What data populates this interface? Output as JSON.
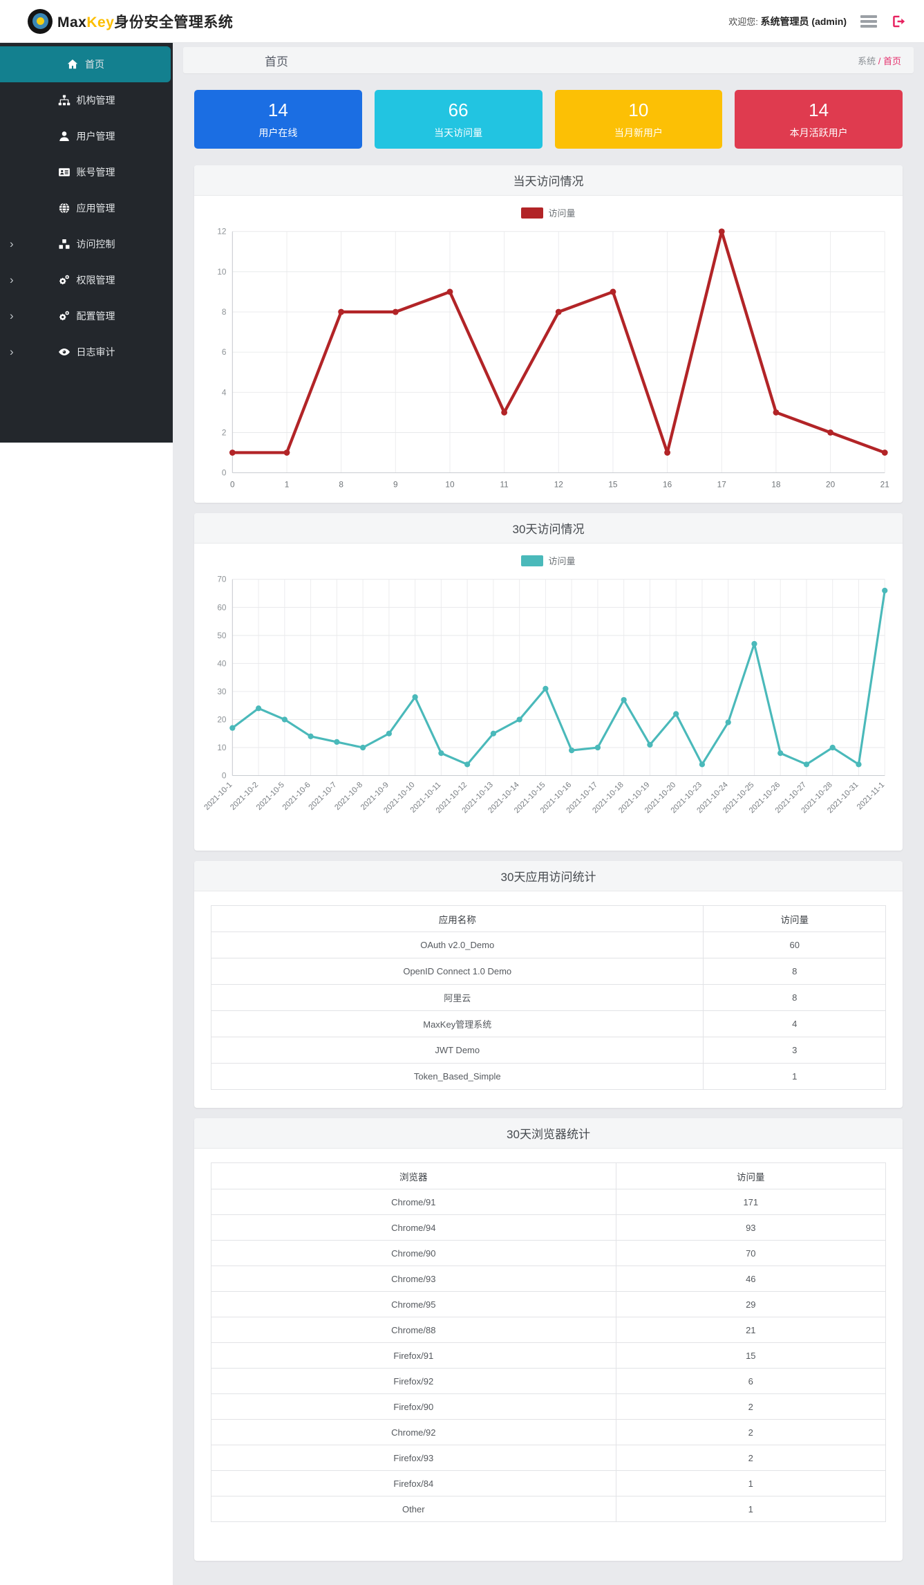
{
  "brand": {
    "logo_black": "Max",
    "logo_yellow": "Key",
    "logo_cn": "身份安全管理系统"
  },
  "topbar": {
    "welcome_prefix": "欢迎您:",
    "username": "系统管理员 (admin)"
  },
  "page_header": {
    "title": "首页",
    "breadcrumb_root": "系统",
    "breadcrumb_sep": " / ",
    "breadcrumb_current": "首页"
  },
  "sidebar": {
    "items": [
      {
        "name": "home",
        "label": "首页",
        "icon": "home-icon",
        "active": true,
        "expandable": false
      },
      {
        "name": "org-mgmt",
        "label": "机构管理",
        "icon": "sitemap-icon",
        "active": false,
        "expandable": false
      },
      {
        "name": "user-mgmt",
        "label": "用户管理",
        "icon": "user-icon",
        "active": false,
        "expandable": false
      },
      {
        "name": "account-mgmt",
        "label": "账号管理",
        "icon": "id-card-icon",
        "active": false,
        "expandable": false
      },
      {
        "name": "app-mgmt",
        "label": "应用管理",
        "icon": "globe-icon",
        "active": false,
        "expandable": false
      },
      {
        "name": "access-control",
        "label": "访问控制",
        "icon": "cubes-icon",
        "active": false,
        "expandable": true
      },
      {
        "name": "permission-mgmt",
        "label": "权限管理",
        "icon": "cogs-icon",
        "active": false,
        "expandable": true
      },
      {
        "name": "config-mgmt",
        "label": "配置管理",
        "icon": "cogs-icon",
        "active": false,
        "expandable": true
      },
      {
        "name": "log-audit",
        "label": "日志审计",
        "icon": "eye-icon",
        "active": false,
        "expandable": true
      }
    ]
  },
  "stat_cards": [
    {
      "name": "users-online",
      "value": "14",
      "label": "用户在线",
      "color": "#1b6ee3"
    },
    {
      "name": "today-visits",
      "value": "66",
      "label": "当天访问量",
      "color": "#22c4e1"
    },
    {
      "name": "month-new-users",
      "value": "10",
      "label": "当月新用户",
      "color": "#fcc005"
    },
    {
      "name": "month-active-users",
      "value": "14",
      "label": "本月活跃用户",
      "color": "#df3b4f"
    }
  ],
  "chart_data": [
    {
      "type": "line",
      "title": "当天访问情况",
      "legend": "访问量",
      "color": "#b22427",
      "categories": [
        "0",
        "1",
        "8",
        "9",
        "10",
        "11",
        "12",
        "15",
        "16",
        "17",
        "18",
        "20",
        "21"
      ],
      "values": [
        1,
        1,
        8,
        8,
        9,
        3,
        8,
        9,
        1,
        12,
        3,
        2,
        1
      ],
      "xlabel": "",
      "ylabel": "",
      "ylim": [
        0,
        12
      ],
      "ytick_step": 2,
      "grid": true,
      "legend_position": "top",
      "rotate_x_labels": false
    },
    {
      "type": "line",
      "title": "30天访问情况",
      "legend": "访问量",
      "color": "#4ab9ba",
      "categories": [
        "2021-10-1",
        "2021-10-2",
        "2021-10-5",
        "2021-10-6",
        "2021-10-7",
        "2021-10-8",
        "2021-10-9",
        "2021-10-10",
        "2021-10-11",
        "2021-10-12",
        "2021-10-13",
        "2021-10-14",
        "2021-10-15",
        "2021-10-16",
        "2021-10-17",
        "2021-10-18",
        "2021-10-19",
        "2021-10-20",
        "2021-10-23",
        "2021-10-24",
        "2021-10-25",
        "2021-10-26",
        "2021-10-27",
        "2021-10-28",
        "2021-10-31",
        "2021-11-1"
      ],
      "values": [
        17,
        24,
        20,
        14,
        12,
        10,
        15,
        28,
        8,
        4,
        15,
        20,
        31,
        9,
        10,
        27,
        11,
        22,
        4,
        19,
        47,
        8,
        4,
        10,
        4,
        66
      ],
      "xlabel": "",
      "ylabel": "",
      "ylim": [
        0,
        70
      ],
      "ytick_step": 10,
      "grid": true,
      "legend_position": "top",
      "rotate_x_labels": true
    }
  ],
  "app_table": {
    "title": "30天应用访问统计",
    "headers": [
      "应用名称",
      "访问量"
    ],
    "rows": [
      [
        "OAuth v2.0_Demo",
        "60"
      ],
      [
        "OpenID Connect 1.0 Demo",
        "8"
      ],
      [
        "阿里云",
        "8"
      ],
      [
        "MaxKey管理系统",
        "4"
      ],
      [
        "JWT Demo",
        "3"
      ],
      [
        "Token_Based_Simple",
        "1"
      ]
    ]
  },
  "browser_table": {
    "title": "30天浏览器统计",
    "headers": [
      "浏览器",
      "访问量"
    ],
    "rows": [
      [
        "Chrome/91",
        "171"
      ],
      [
        "Chrome/94",
        "93"
      ],
      [
        "Chrome/90",
        "70"
      ],
      [
        "Chrome/93",
        "46"
      ],
      [
        "Chrome/95",
        "29"
      ],
      [
        "Chrome/88",
        "21"
      ],
      [
        "Firefox/91",
        "15"
      ],
      [
        "Firefox/92",
        "6"
      ],
      [
        "Firefox/90",
        "2"
      ],
      [
        "Chrome/92",
        "2"
      ],
      [
        "Firefox/93",
        "2"
      ],
      [
        "Firefox/84",
        "1"
      ],
      [
        "Other",
        "1"
      ]
    ]
  },
  "colors": {
    "sidebar_active": "#13808f",
    "breadcrumb_accent": "#e5316d",
    "logout_icon": "#e7215f"
  }
}
